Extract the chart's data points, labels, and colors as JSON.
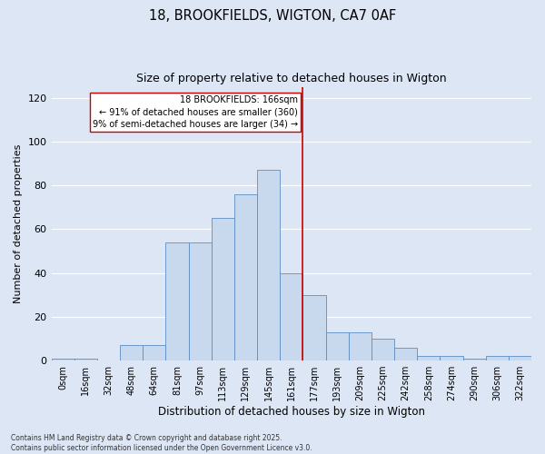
{
  "title1": "18, BROOKFIELDS, WIGTON, CA7 0AF",
  "title2": "Size of property relative to detached houses in Wigton",
  "xlabel": "Distribution of detached houses by size in Wigton",
  "ylabel": "Number of detached properties",
  "bin_labels": [
    "0sqm",
    "16sqm",
    "32sqm",
    "48sqm",
    "64sqm",
    "81sqm",
    "97sqm",
    "113sqm",
    "129sqm",
    "145sqm",
    "161sqm",
    "177sqm",
    "193sqm",
    "209sqm",
    "225sqm",
    "242sqm",
    "258sqm",
    "274sqm",
    "290sqm",
    "306sqm",
    "322sqm"
  ],
  "bar_values": [
    1,
    1,
    0,
    7,
    7,
    54,
    54,
    65,
    76,
    87,
    40,
    30,
    13,
    13,
    10,
    6,
    2,
    2,
    1,
    2,
    2
  ],
  "bar_color": "#c8d9ee",
  "bar_edge_color": "#5b8ec4",
  "vline_x": 10.5,
  "vline_color": "#cc0000",
  "ylim": [
    0,
    125
  ],
  "yticks": [
    0,
    20,
    40,
    60,
    80,
    100,
    120
  ],
  "annotation_line1": "18 BROOKFIELDS: 166sqm",
  "annotation_line2": "← 91% of detached houses are smaller (360)",
  "annotation_line3": "9% of semi-detached houses are larger (34) →",
  "footer1": "Contains HM Land Registry data © Crown copyright and database right 2025.",
  "footer2": "Contains public sector information licensed under the Open Government Licence v3.0.",
  "bg_color": "#dce6f5",
  "grid_color": "#ffffff"
}
